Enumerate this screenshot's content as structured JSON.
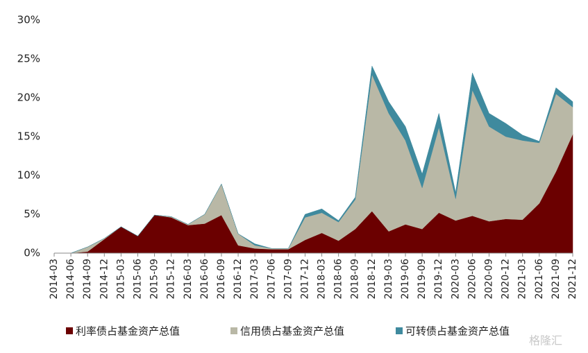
{
  "chart_data": {
    "type": "stacked_area",
    "categories": [
      "2014-03",
      "2014-06",
      "2014-09",
      "2014-12",
      "2015-03",
      "2015-06",
      "2015-09",
      "2015-12",
      "2016-03",
      "2016-06",
      "2016-09",
      "2016-12",
      "2017-03",
      "2017-06",
      "2017-09",
      "2017-12",
      "2018-03",
      "2018-06",
      "2018-09",
      "2018-12",
      "2019-03",
      "2019-06",
      "2019-09",
      "2019-12",
      "2020-03",
      "2020-06",
      "2020-09",
      "2020-12",
      "2021-03",
      "2021-06",
      "2021-09",
      "2021-12"
    ],
    "series": [
      {
        "name": "利率债占基金资产总值",
        "color": "#6b0000",
        "values": [
          0,
          0,
          0.2,
          1.8,
          3.4,
          2.2,
          4.9,
          4.6,
          3.6,
          3.8,
          4.9,
          1.0,
          0.6,
          0.5,
          0.5,
          1.7,
          2.6,
          1.6,
          3.1,
          5.4,
          2.8,
          3.7,
          3.1,
          5.2,
          4.2,
          4.8,
          4.1,
          4.4,
          4.3,
          6.4,
          10.5,
          15.3
        ]
      },
      {
        "name": "信用债占基金资产总值",
        "color": "#b9b8a6",
        "values": [
          0,
          0,
          0.6,
          0.1,
          0,
          0,
          0,
          0.1,
          0.1,
          1.2,
          4.0,
          1.5,
          0.4,
          0.1,
          0.1,
          2.9,
          2.6,
          2.4,
          3.8,
          17.6,
          15.2,
          10.8,
          5.3,
          11.0,
          2.8,
          16.2,
          12.2,
          10.6,
          10.2,
          7.8,
          10.0,
          3.5
        ]
      },
      {
        "name": "可转债占基金资产总值",
        "color": "#3f8a9e",
        "values": [
          0,
          0,
          0,
          0,
          0,
          0,
          0,
          0,
          0,
          0,
          0,
          0,
          0.2,
          0,
          0,
          0.4,
          0.5,
          0.2,
          0.3,
          1.1,
          1.5,
          1.8,
          1.8,
          1.8,
          0.8,
          2.2,
          1.7,
          1.7,
          0.7,
          0.2,
          0.8,
          0.7
        ]
      }
    ],
    "ylim": [
      0,
      30
    ],
    "yticks": [
      {
        "value": 0,
        "label": "0%"
      },
      {
        "value": 5,
        "label": "5%"
      },
      {
        "value": 10,
        "label": "10%"
      },
      {
        "value": 15,
        "label": "15%"
      },
      {
        "value": 20,
        "label": "20%"
      },
      {
        "value": 25,
        "label": "25%"
      },
      {
        "value": 30,
        "label": "30%"
      }
    ],
    "legend": "bottom",
    "watermark": "格隆汇"
  }
}
